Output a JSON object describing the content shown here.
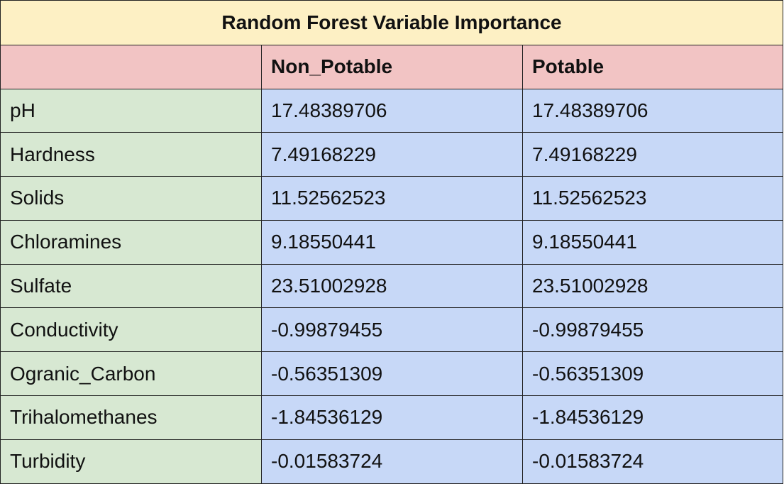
{
  "chart_data": {
    "type": "table",
    "title": "Random Forest Variable Importance",
    "columns": [
      "",
      "Non_Potable",
      "Potable"
    ],
    "rows": [
      {
        "label": "pH",
        "values": [
          "17.48389706",
          "17.48389706"
        ]
      },
      {
        "label": "Hardness",
        "values": [
          "7.49168229",
          "7.49168229"
        ]
      },
      {
        "label": "Solids",
        "values": [
          "11.52562523",
          "11.52562523"
        ]
      },
      {
        "label": "Chloramines",
        "values": [
          "9.18550441",
          "9.18550441"
        ]
      },
      {
        "label": "Sulfate",
        "values": [
          "23.51002928",
          "23.51002928"
        ]
      },
      {
        "label": "Conductivity",
        "values": [
          "-0.99879455",
          "-0.99879455"
        ]
      },
      {
        "label": "Ogranic_Carbon",
        "values": [
          "-0.56351309",
          "-0.56351309"
        ]
      },
      {
        "label": "Trihalomethanes",
        "values": [
          "-1.84536129",
          "-1.84536129"
        ]
      },
      {
        "label": "Turbidity",
        "values": [
          "-0.01583724",
          "-0.01583724"
        ]
      }
    ]
  },
  "colors": {
    "title_bg": "#fdf0c4",
    "header_bg": "#f2c4c4",
    "label_bg": "#d7e8d2",
    "value_bg": "#c7d8f7",
    "border": "#222222"
  }
}
